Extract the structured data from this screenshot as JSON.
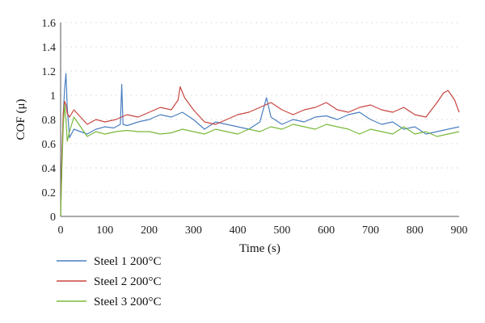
{
  "chart_data": {
    "type": "line",
    "title": "",
    "xlabel": "Time (s)",
    "ylabel": "COF (μ)",
    "xlim": [
      0,
      900
    ],
    "ylim": [
      0,
      1.6
    ],
    "x_ticks": [
      "0",
      "100",
      "200",
      "300",
      "400",
      "500",
      "600",
      "700",
      "800",
      "900"
    ],
    "y_ticks": [
      "0",
      "0.2",
      "0.4",
      "0.6",
      "0.8",
      "1",
      "1.2",
      "1.4",
      "1.6"
    ],
    "grid": "horizontal dotted",
    "legend_position": "bottom-left",
    "series": [
      {
        "name": "Steel 1 200°C",
        "color": "#4a7fc1",
        "x": [
          0,
          3,
          6,
          9,
          12,
          15,
          20,
          30,
          45,
          60,
          80,
          100,
          120,
          135,
          138,
          141,
          150,
          175,
          200,
          225,
          250,
          275,
          300,
          325,
          350,
          375,
          400,
          425,
          450,
          465,
          475,
          500,
          525,
          550,
          575,
          600,
          625,
          650,
          675,
          700,
          725,
          750,
          775,
          800,
          825,
          850,
          875,
          900
        ],
        "y": [
          0.0,
          0.5,
          0.85,
          1.05,
          1.18,
          0.9,
          0.65,
          0.72,
          0.7,
          0.68,
          0.72,
          0.74,
          0.73,
          0.76,
          1.09,
          0.76,
          0.75,
          0.78,
          0.8,
          0.84,
          0.82,
          0.86,
          0.8,
          0.72,
          0.78,
          0.76,
          0.74,
          0.72,
          0.78,
          0.98,
          0.82,
          0.76,
          0.8,
          0.78,
          0.82,
          0.83,
          0.8,
          0.84,
          0.86,
          0.8,
          0.76,
          0.78,
          0.72,
          0.74,
          0.68,
          0.7,
          0.72,
          0.74
        ]
      },
      {
        "name": "Steel 2 200°C",
        "color": "#c84540",
        "x": [
          0,
          3,
          6,
          9,
          12,
          15,
          20,
          30,
          45,
          60,
          80,
          100,
          125,
          150,
          175,
          200,
          225,
          250,
          265,
          270,
          280,
          300,
          325,
          350,
          375,
          400,
          425,
          450,
          475,
          500,
          525,
          550,
          575,
          600,
          625,
          650,
          675,
          700,
          725,
          750,
          775,
          800,
          825,
          850,
          865,
          875,
          890,
          900
        ],
        "y": [
          0.0,
          0.5,
          0.85,
          0.95,
          0.92,
          0.85,
          0.82,
          0.88,
          0.82,
          0.76,
          0.8,
          0.78,
          0.8,
          0.84,
          0.82,
          0.86,
          0.9,
          0.88,
          0.96,
          1.07,
          0.98,
          0.88,
          0.78,
          0.76,
          0.8,
          0.84,
          0.86,
          0.9,
          0.94,
          0.88,
          0.84,
          0.88,
          0.9,
          0.94,
          0.88,
          0.86,
          0.9,
          0.92,
          0.88,
          0.86,
          0.9,
          0.84,
          0.82,
          0.94,
          1.02,
          1.04,
          0.96,
          0.86
        ]
      },
      {
        "name": "Steel 3 200°C",
        "color": "#7ab83a",
        "x": [
          0,
          3,
          6,
          9,
          12,
          15,
          20,
          30,
          45,
          60,
          80,
          100,
          125,
          150,
          175,
          200,
          225,
          250,
          275,
          300,
          325,
          350,
          375,
          400,
          425,
          450,
          475,
          500,
          525,
          550,
          575,
          600,
          625,
          650,
          675,
          700,
          725,
          750,
          775,
          800,
          825,
          850,
          875,
          900
        ],
        "y": [
          0.0,
          0.4,
          0.75,
          0.92,
          0.8,
          0.62,
          0.7,
          0.82,
          0.74,
          0.66,
          0.7,
          0.68,
          0.7,
          0.71,
          0.7,
          0.7,
          0.68,
          0.69,
          0.72,
          0.7,
          0.68,
          0.72,
          0.7,
          0.68,
          0.72,
          0.7,
          0.74,
          0.72,
          0.76,
          0.74,
          0.72,
          0.76,
          0.74,
          0.72,
          0.68,
          0.72,
          0.7,
          0.68,
          0.74,
          0.68,
          0.7,
          0.66,
          0.68,
          0.7
        ]
      }
    ]
  }
}
